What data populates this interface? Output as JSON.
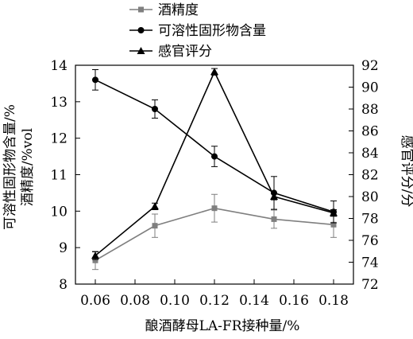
{
  "chart_data": {
    "type": "line",
    "xlabel": "酿酒酵母LA-FR接种量/%",
    "ylabel_left": [
      "可溶性固形物含量/%",
      "酒精度/%vol"
    ],
    "ylabel_right": "感官评分/分",
    "x": [
      0.06,
      0.09,
      0.12,
      0.15,
      0.18
    ],
    "xlim": [
      0.05,
      0.19
    ],
    "x_ticks": [
      "0.06",
      "0.08",
      "0.10",
      "0.12",
      "0.14",
      "0.16",
      "0.18"
    ],
    "ylim_left": [
      8,
      14
    ],
    "y_ticks_left": [
      "8",
      "9",
      "10",
      "11",
      "12",
      "13",
      "14"
    ],
    "ylim_right": [
      72,
      92
    ],
    "y_ticks_right": [
      "72",
      "74",
      "76",
      "78",
      "80",
      "82",
      "84",
      "86",
      "88",
      "90",
      "92"
    ],
    "legend_position": "top-center",
    "series": [
      {
        "name": "酒精度",
        "marker": "square",
        "axis": "left",
        "color": "#7f7f7f",
        "values": [
          8.65,
          9.6,
          10.08,
          9.78,
          9.63
        ],
        "errors": [
          0.25,
          0.32,
          0.38,
          0.25,
          0.35
        ]
      },
      {
        "name": "可溶性固形物含量",
        "marker": "circle",
        "axis": "left",
        "color": "#000000",
        "values": [
          13.6,
          12.8,
          11.5,
          10.5,
          9.98
        ],
        "errors": [
          0.28,
          0.25,
          0.28,
          0.45,
          0.3
        ]
      },
      {
        "name": "感官评分",
        "marker": "triangle",
        "axis": "right",
        "color": "#000000",
        "values": [
          74.6,
          79.1,
          91.4,
          80.0,
          78.5
        ],
        "errors": [
          0.35,
          0.3,
          0.3,
          0.3,
          0.3
        ]
      }
    ]
  }
}
